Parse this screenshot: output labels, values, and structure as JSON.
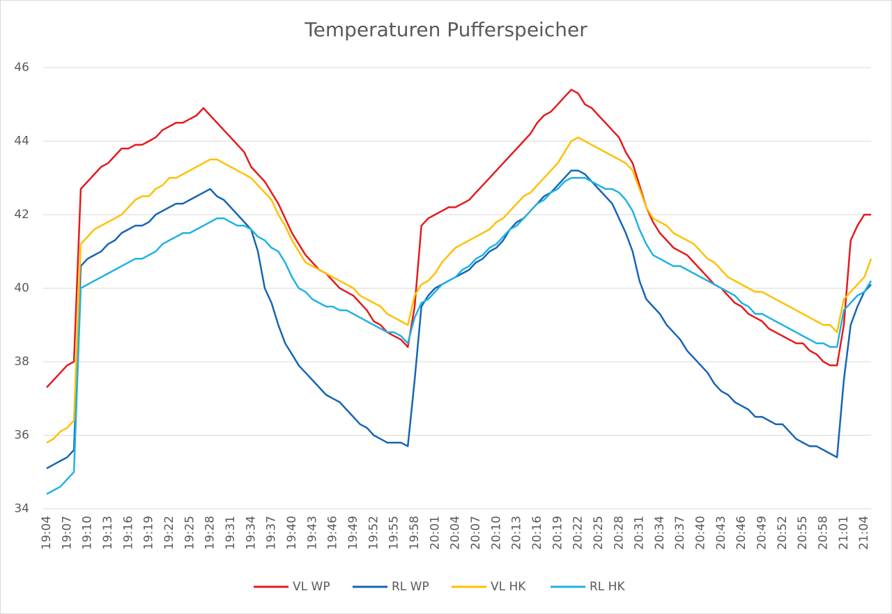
{
  "chart_data": {
    "type": "line",
    "title": "Temperaturen Pufferspeicher",
    "categories": [
      "19:04",
      null,
      null,
      "19:07",
      null,
      null,
      "19:10",
      null,
      null,
      "19:13",
      null,
      null,
      "19:16",
      null,
      null,
      "19:19",
      null,
      null,
      "19:22",
      null,
      null,
      "19:25",
      null,
      null,
      "19:28",
      null,
      null,
      "19:31",
      null,
      null,
      "19:34",
      null,
      null,
      "19:37",
      null,
      null,
      "19:40",
      null,
      null,
      "19:43",
      null,
      null,
      "19:46",
      null,
      null,
      "19:49",
      null,
      null,
      "19:52",
      null,
      null,
      "19:55",
      null,
      null,
      "19:58",
      null,
      null,
      "20:01",
      null,
      null,
      "20:04",
      null,
      null,
      "20:07",
      null,
      null,
      "20:10",
      null,
      null,
      "20:13",
      null,
      null,
      "20:16",
      null,
      null,
      "20:19",
      null,
      null,
      "20:22",
      null,
      null,
      "20:25",
      null,
      null,
      "20:28",
      null,
      null,
      "20:31",
      null,
      null,
      "20:34",
      null,
      null,
      "20:37",
      null,
      null,
      "20:40",
      null,
      null,
      "20:43",
      null,
      null,
      "20:46",
      null,
      null,
      "20:49",
      null,
      null,
      "20:52",
      null,
      null,
      "20:55",
      null,
      null,
      "20:58",
      null,
      null,
      "21:01",
      null,
      null,
      "21:04",
      null
    ],
    "series": [
      {
        "name": "VL WP",
        "color": "#e41a1c",
        "values": [
          37.3,
          37.5,
          37.7,
          37.9,
          38.0,
          42.7,
          42.9,
          43.1,
          43.3,
          43.4,
          43.6,
          43.8,
          43.8,
          43.9,
          43.9,
          44.0,
          44.1,
          44.3,
          44.4,
          44.5,
          44.5,
          44.6,
          44.7,
          44.9,
          44.7,
          44.5,
          44.3,
          44.1,
          43.9,
          43.7,
          43.3,
          43.1,
          42.9,
          42.6,
          42.3,
          41.9,
          41.5,
          41.2,
          40.9,
          40.7,
          40.5,
          40.4,
          40.2,
          40.0,
          39.9,
          39.8,
          39.6,
          39.4,
          39.1,
          39.0,
          38.8,
          38.7,
          38.6,
          38.4,
          39.5,
          41.7,
          41.9,
          42.0,
          42.1,
          42.2,
          42.2,
          42.3,
          42.4,
          42.6,
          42.8,
          43.0,
          43.2,
          43.4,
          43.6,
          43.8,
          44.0,
          44.2,
          44.5,
          44.7,
          44.8,
          45.0,
          45.2,
          45.4,
          45.3,
          45.0,
          44.9,
          44.7,
          44.5,
          44.3,
          44.1,
          43.7,
          43.4,
          42.8,
          42.2,
          41.8,
          41.5,
          41.3,
          41.1,
          41.0,
          40.9,
          40.7,
          40.5,
          40.3,
          40.1,
          40.0,
          39.8,
          39.6,
          39.5,
          39.3,
          39.2,
          39.1,
          38.9,
          38.8,
          38.7,
          38.6,
          38.5,
          38.5,
          38.3,
          38.2,
          38.0,
          37.9,
          37.9,
          39.0,
          41.3,
          41.7,
          42.0,
          42.0
        ]
      },
      {
        "name": "RL WP",
        "color": "#1565b5",
        "values": [
          35.1,
          35.2,
          35.3,
          35.4,
          35.6,
          40.6,
          40.8,
          40.9,
          41.0,
          41.2,
          41.3,
          41.5,
          41.6,
          41.7,
          41.7,
          41.8,
          42.0,
          42.1,
          42.2,
          42.3,
          42.3,
          42.4,
          42.5,
          42.6,
          42.7,
          42.5,
          42.4,
          42.2,
          42.0,
          41.8,
          41.6,
          41.0,
          40.0,
          39.6,
          39.0,
          38.5,
          38.2,
          37.9,
          37.7,
          37.5,
          37.3,
          37.1,
          37.0,
          36.9,
          36.7,
          36.5,
          36.3,
          36.2,
          36.0,
          35.9,
          35.8,
          35.8,
          35.8,
          35.7,
          37.5,
          39.5,
          39.8,
          40.0,
          40.1,
          40.2,
          40.3,
          40.4,
          40.5,
          40.7,
          40.8,
          41.0,
          41.1,
          41.3,
          41.6,
          41.8,
          41.9,
          42.1,
          42.3,
          42.5,
          42.6,
          42.8,
          43.0,
          43.2,
          43.2,
          43.1,
          42.9,
          42.7,
          42.5,
          42.3,
          41.9,
          41.5,
          41.0,
          40.2,
          39.7,
          39.5,
          39.3,
          39.0,
          38.8,
          38.6,
          38.3,
          38.1,
          37.9,
          37.7,
          37.4,
          37.2,
          37.1,
          36.9,
          36.8,
          36.7,
          36.5,
          36.5,
          36.4,
          36.3,
          36.3,
          36.1,
          35.9,
          35.8,
          35.7,
          35.7,
          35.6,
          35.5,
          35.4,
          37.5,
          39.0,
          39.5,
          39.9,
          40.1
        ]
      },
      {
        "name": "VL HK",
        "color": "#ffc000",
        "values": [
          35.8,
          35.9,
          36.1,
          36.2,
          36.4,
          41.2,
          41.4,
          41.6,
          41.7,
          41.8,
          41.9,
          42.0,
          42.2,
          42.4,
          42.5,
          42.5,
          42.7,
          42.8,
          43.0,
          43.0,
          43.1,
          43.2,
          43.3,
          43.4,
          43.5,
          43.5,
          43.4,
          43.3,
          43.2,
          43.1,
          43.0,
          42.8,
          42.6,
          42.4,
          42.0,
          41.7,
          41.3,
          41.0,
          40.7,
          40.6,
          40.5,
          40.4,
          40.3,
          40.2,
          40.1,
          40.0,
          39.8,
          39.7,
          39.6,
          39.5,
          39.3,
          39.2,
          39.1,
          39.0,
          39.8,
          40.1,
          40.2,
          40.4,
          40.7,
          40.9,
          41.1,
          41.2,
          41.3,
          41.4,
          41.5,
          41.6,
          41.8,
          41.9,
          42.1,
          42.3,
          42.5,
          42.6,
          42.8,
          43.0,
          43.2,
          43.4,
          43.7,
          44.0,
          44.1,
          44.0,
          43.9,
          43.8,
          43.7,
          43.6,
          43.5,
          43.4,
          43.2,
          42.7,
          42.2,
          41.9,
          41.8,
          41.7,
          41.5,
          41.4,
          41.3,
          41.2,
          41.0,
          40.8,
          40.7,
          40.5,
          40.3,
          40.2,
          40.1,
          40.0,
          39.9,
          39.9,
          39.8,
          39.7,
          39.6,
          39.5,
          39.4,
          39.3,
          39.2,
          39.1,
          39.0,
          39.0,
          38.8,
          39.7,
          39.9,
          40.1,
          40.3,
          40.8
        ]
      },
      {
        "name": "RL HK",
        "color": "#1fb1e6",
        "values": [
          34.4,
          34.5,
          34.6,
          34.8,
          35.0,
          40.0,
          40.1,
          40.2,
          40.3,
          40.4,
          40.5,
          40.6,
          40.7,
          40.8,
          40.8,
          40.9,
          41.0,
          41.2,
          41.3,
          41.4,
          41.5,
          41.5,
          41.6,
          41.7,
          41.8,
          41.9,
          41.9,
          41.8,
          41.7,
          41.7,
          41.6,
          41.4,
          41.3,
          41.1,
          41.0,
          40.7,
          40.3,
          40.0,
          39.9,
          39.7,
          39.6,
          39.5,
          39.5,
          39.4,
          39.4,
          39.3,
          39.2,
          39.1,
          39.0,
          38.9,
          38.8,
          38.8,
          38.7,
          38.5,
          39.2,
          39.6,
          39.7,
          39.9,
          40.1,
          40.2,
          40.3,
          40.5,
          40.6,
          40.8,
          40.9,
          41.1,
          41.2,
          41.4,
          41.6,
          41.7,
          41.9,
          42.1,
          42.3,
          42.4,
          42.6,
          42.7,
          42.9,
          43.0,
          43.0,
          43.0,
          42.9,
          42.8,
          42.7,
          42.7,
          42.6,
          42.4,
          42.1,
          41.6,
          41.2,
          40.9,
          40.8,
          40.7,
          40.6,
          40.6,
          40.5,
          40.4,
          40.3,
          40.2,
          40.1,
          40.0,
          39.9,
          39.8,
          39.6,
          39.5,
          39.3,
          39.3,
          39.2,
          39.1,
          39.0,
          38.9,
          38.8,
          38.7,
          38.6,
          38.5,
          38.5,
          38.4,
          38.4,
          39.4,
          39.6,
          39.8,
          39.9,
          40.2
        ]
      }
    ],
    "ylim": [
      34,
      46
    ],
    "yticks": [
      34,
      36,
      38,
      40,
      42,
      44,
      46
    ],
    "grid": true,
    "legend": "bottom"
  }
}
